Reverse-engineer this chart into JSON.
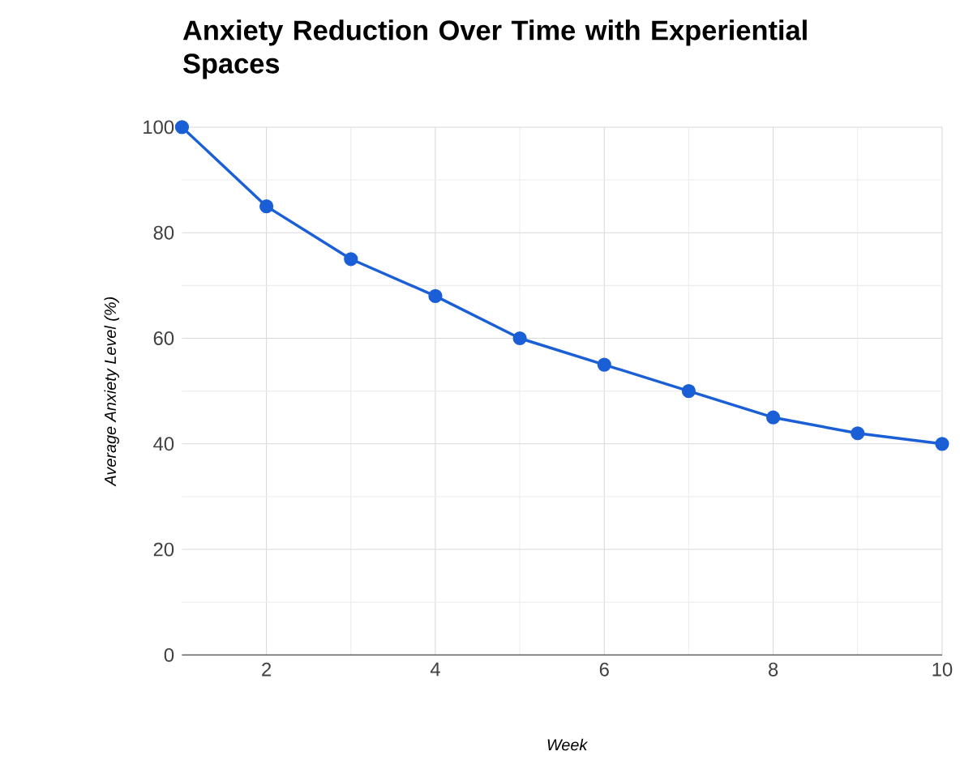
{
  "chart_data": {
    "type": "line",
    "title": "Anxiety Reduction Over Time with Experiential Spaces",
    "xlabel": "Week",
    "ylabel": "Average Anxiety Level (%)",
    "x": [
      1,
      2,
      3,
      4,
      5,
      6,
      7,
      8,
      9,
      10
    ],
    "series": [
      {
        "color": "#1a5fd6",
        "values": [
          100,
          85,
          75,
          68,
          60,
          55,
          50,
          45,
          42,
          40
        ]
      }
    ],
    "xlim": [
      1,
      10
    ],
    "xticks": [
      2,
      4,
      6,
      8,
      10
    ],
    "ylim": [
      0,
      100
    ],
    "yticks": [
      0,
      20,
      40,
      60,
      80,
      100
    ],
    "grid": true,
    "marker": "circle",
    "line_style": "solid"
  }
}
